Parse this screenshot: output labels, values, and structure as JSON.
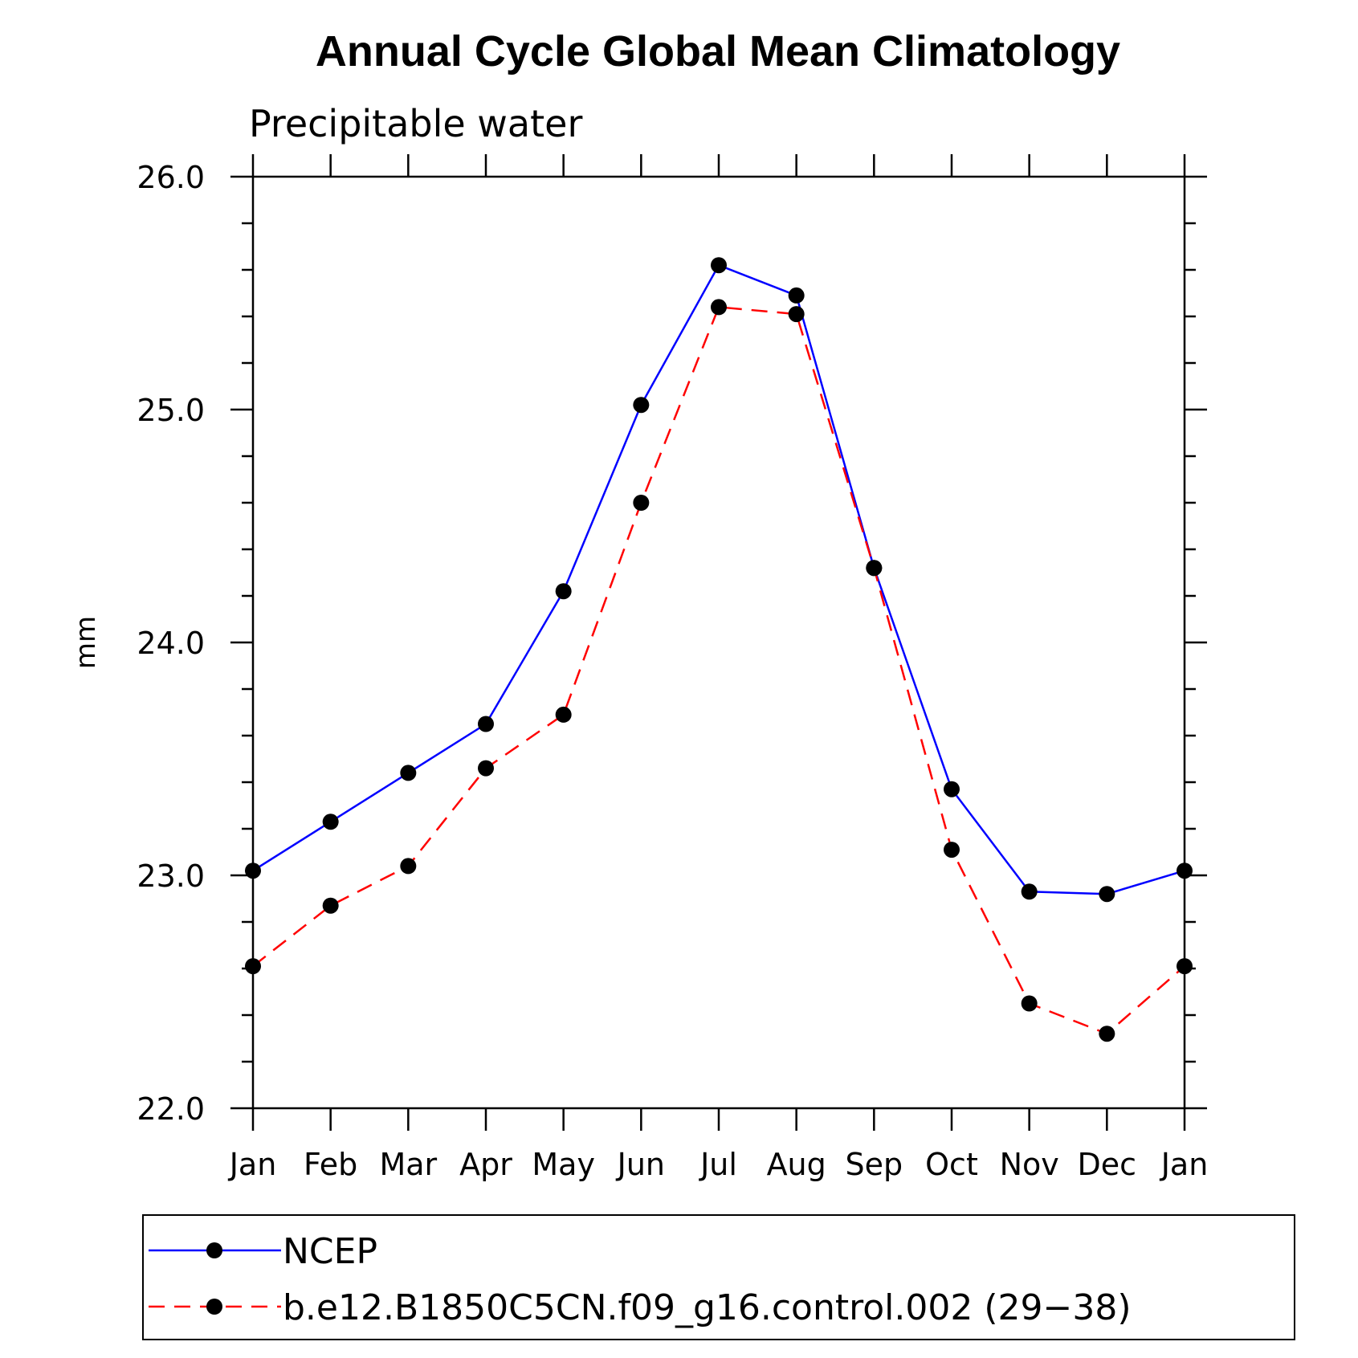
{
  "chart_data": {
    "type": "line",
    "title": "Annual Cycle Global Mean Climatology",
    "subtitle": "Precipitable water",
    "xlabel": "",
    "ylabel": "mm",
    "categories": [
      "Jan",
      "Feb",
      "Mar",
      "Apr",
      "May",
      "Jun",
      "Jul",
      "Aug",
      "Sep",
      "Oct",
      "Nov",
      "Dec",
      "Jan"
    ],
    "ylim": [
      22.0,
      26.0
    ],
    "y_major_ticks": [
      22.0,
      23.0,
      24.0,
      25.0,
      26.0
    ],
    "y_tick_labels": [
      "22.0",
      "23.0",
      "24.0",
      "25.0",
      "26.0"
    ],
    "y_minor_step": 0.2,
    "legend_position": "bottom",
    "series": [
      {
        "name": "NCEP",
        "color": "#0000ff",
        "dash": "solid",
        "marker": "filled-circle",
        "values": [
          23.02,
          23.23,
          23.44,
          23.65,
          24.22,
          25.02,
          25.62,
          25.49,
          24.32,
          23.37,
          22.93,
          22.92,
          23.02
        ]
      },
      {
        "name": "b.e12.B1850C5CN.f09_g16.control.002 (29−38)",
        "color": "#ff0000",
        "dash": "dashed",
        "marker": "filled-circle",
        "values": [
          22.61,
          22.87,
          23.04,
          23.46,
          23.69,
          24.6,
          25.44,
          25.41,
          24.32,
          23.11,
          22.45,
          22.32,
          22.61
        ]
      }
    ]
  }
}
